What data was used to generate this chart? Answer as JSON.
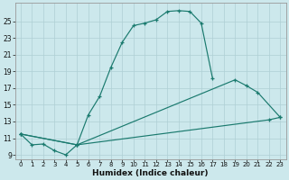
{
  "xlabel": "Humidex (Indice chaleur)",
  "bg_color": "#cce8ec",
  "line_color": "#1a7a6e",
  "grid_color": "#aecfd4",
  "xlim": [
    -0.5,
    23.5
  ],
  "ylim": [
    8.5,
    27.2
  ],
  "xticks": [
    0,
    1,
    2,
    3,
    4,
    5,
    6,
    7,
    8,
    9,
    10,
    11,
    12,
    13,
    14,
    15,
    16,
    17,
    18,
    19,
    20,
    21,
    22,
    23
  ],
  "yticks": [
    9,
    11,
    13,
    15,
    17,
    19,
    21,
    23,
    25
  ],
  "curve1_x": [
    0,
    1,
    2,
    3,
    4,
    5,
    6,
    7,
    8,
    9,
    10,
    11,
    12,
    13,
    14,
    15,
    16,
    17
  ],
  "curve1_y": [
    11.5,
    10.2,
    10.3,
    9.5,
    9.0,
    10.2,
    13.8,
    16.0,
    19.5,
    22.5,
    24.5,
    24.8,
    25.2,
    26.2,
    26.3,
    26.2,
    24.8,
    18.2
  ],
  "curve2_x": [
    0,
    5,
    19,
    20,
    21,
    23
  ],
  "curve2_y": [
    11.5,
    10.2,
    18.0,
    17.3,
    16.5,
    13.5
  ],
  "curve3_x": [
    0,
    5,
    22,
    23
  ],
  "curve3_y": [
    11.5,
    10.2,
    13.2,
    13.5
  ]
}
